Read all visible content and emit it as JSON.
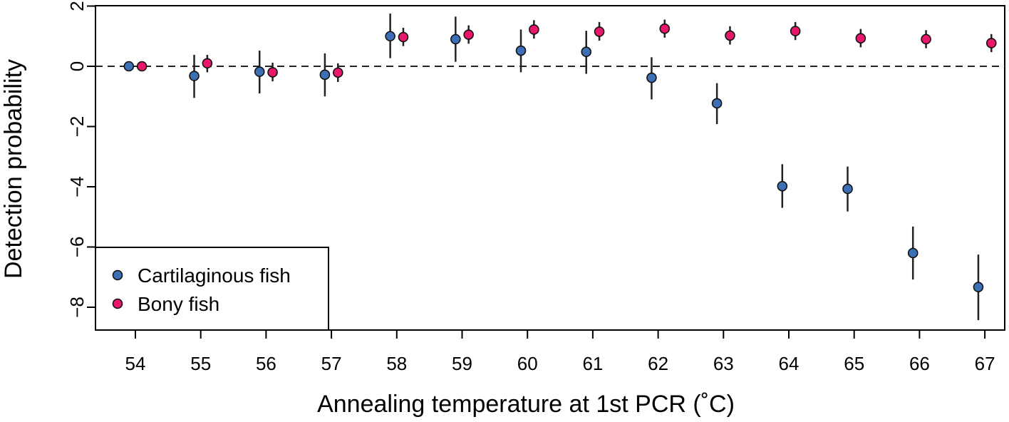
{
  "chart_data": {
    "type": "scatter",
    "title": "",
    "xlabel": "Annealing temperature at 1st PCR (˚C)",
    "ylabel": "Detection probability",
    "x_categories": [
      "54",
      "55",
      "56",
      "57",
      "58",
      "59",
      "60",
      "61",
      "62",
      "63",
      "64",
      "65",
      "66",
      "67"
    ],
    "yticks": [
      2,
      0,
      -2,
      -4,
      -6,
      -8
    ],
    "ytick_labels": [
      "2",
      "0",
      "−2",
      "−4",
      "−6",
      "−8"
    ],
    "ylim": [
      -8.8,
      2.0
    ],
    "reference_line": {
      "y": 0,
      "style": "dashed"
    },
    "grid": false,
    "legend": {
      "placement": "bottom-left"
    },
    "series": [
      {
        "name": "Cartilaginous fish",
        "color": "#3d6fb6",
        "offset": -0.1,
        "values": [
          0.0,
          -0.32,
          -0.18,
          -0.28,
          1.0,
          0.9,
          0.52,
          0.48,
          -0.38,
          -1.23,
          -3.98,
          -4.07,
          -6.2,
          -7.33
        ],
        "lower": [
          0.0,
          -1.05,
          -0.9,
          -1.0,
          0.27,
          0.15,
          -0.2,
          -0.25,
          -1.1,
          -1.92,
          -4.7,
          -4.82,
          -7.08,
          -8.43
        ],
        "upper": [
          0.0,
          0.38,
          0.52,
          0.43,
          1.75,
          1.65,
          1.22,
          1.18,
          0.3,
          -0.56,
          -3.25,
          -3.33,
          -5.32,
          -6.25
        ]
      },
      {
        "name": "Bony fish",
        "color": "#e8176b",
        "offset": 0.1,
        "values": [
          0.0,
          0.1,
          -0.2,
          -0.21,
          0.97,
          1.05,
          1.22,
          1.15,
          1.25,
          1.02,
          1.17,
          0.93,
          0.9,
          0.77
        ],
        "lower": [
          0.0,
          -0.2,
          -0.5,
          -0.52,
          0.67,
          0.75,
          0.92,
          0.85,
          0.95,
          0.72,
          0.87,
          0.63,
          0.6,
          0.47
        ],
        "upper": [
          0.0,
          0.38,
          0.12,
          0.1,
          1.28,
          1.36,
          1.53,
          1.47,
          1.55,
          1.33,
          1.47,
          1.24,
          1.2,
          1.07
        ]
      }
    ]
  }
}
